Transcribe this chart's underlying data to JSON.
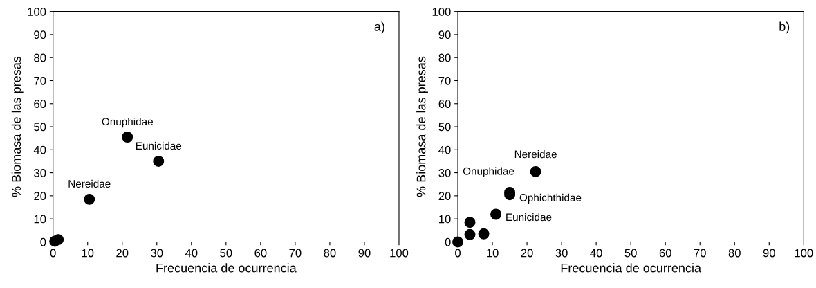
{
  "chart_data": [
    {
      "type": "scatter",
      "x": [
        0.5,
        1.5,
        10.5,
        21.5,
        30.5
      ],
      "values": [
        0.3,
        1,
        18.5,
        45.5,
        35
      ],
      "color": "#000000",
      "marker": "circle",
      "xlim": [
        0,
        100
      ],
      "ylim": [
        0,
        100
      ],
      "xticks": [
        0,
        10,
        20,
        30,
        40,
        50,
        60,
        70,
        80,
        90,
        100
      ],
      "yticks": [
        0,
        10,
        20,
        30,
        40,
        50,
        60,
        70,
        80,
        90,
        100
      ],
      "xlabel": "Frecuencia de ocurrencia",
      "ylabel": "% Biomasa de las presas",
      "grid": false,
      "annotations": [
        "a)",
        {
          "text": "Onuphidae",
          "x": 21.5,
          "y": 45.5
        },
        {
          "text": "Eunicidae",
          "x": 30.5,
          "y": 35
        },
        {
          "text": "Nereidae",
          "x": 10.5,
          "y": 18.5
        }
      ]
    },
    {
      "type": "scatter",
      "x": [
        0,
        3.5,
        3.5,
        7.5,
        11,
        15,
        15,
        22.5
      ],
      "values": [
        0,
        3.2,
        8.5,
        3.5,
        12,
        20.5,
        21.5,
        30.5
      ],
      "color": "#000000",
      "marker": "circle",
      "xlim": [
        0,
        100
      ],
      "ylim": [
        0,
        100
      ],
      "xticks": [
        0,
        10,
        20,
        30,
        40,
        50,
        60,
        70,
        80,
        90,
        100
      ],
      "yticks": [
        0,
        10,
        20,
        30,
        40,
        50,
        60,
        70,
        80,
        90,
        100
      ],
      "xlabel": "Frecuencia de ocurrencia",
      "ylabel": "% Biomasa de las presas",
      "grid": false,
      "annotations": [
        "b)",
        {
          "text": "Nereidae",
          "x": 22.5,
          "y": 30.5
        },
        {
          "text": "Onuphidae",
          "x": 15,
          "y": 21.5
        },
        {
          "text": "Ophichthidae",
          "x": 15,
          "y": 20.5
        },
        {
          "text": "Eunicidae",
          "x": 11,
          "y": 12
        }
      ]
    }
  ]
}
